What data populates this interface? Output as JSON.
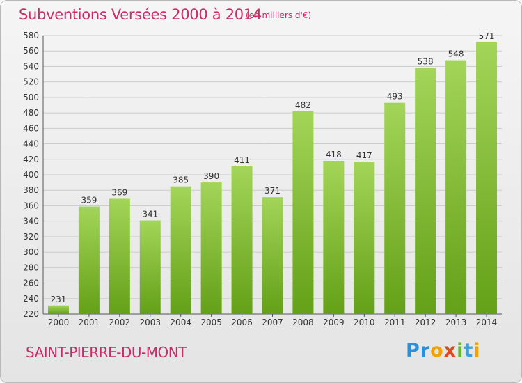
{
  "title": "Subventions Versées 2000 à 2014",
  "subtitle": "(en milliers d'€)",
  "city": "SAINT-PIERRE-DU-MONT",
  "logo": {
    "text": "Proxiti",
    "colors": [
      "#2e8fd6",
      "#f0a300",
      "#e9451c",
      "#67b62f",
      "#3aa3dd"
    ]
  },
  "colors": {
    "title": "#cc2a66",
    "bar_top": "#a3d558",
    "bar_bottom": "#64a018",
    "grid": "#cccccc",
    "axis_text": "#333333"
  },
  "chart_data": {
    "type": "bar",
    "categories": [
      "2000",
      "2001",
      "2002",
      "2003",
      "2004",
      "2005",
      "2006",
      "2007",
      "2008",
      "2009",
      "2010",
      "2011",
      "2012",
      "2013",
      "2014"
    ],
    "values": [
      231,
      359,
      369,
      341,
      385,
      390,
      411,
      371,
      482,
      418,
      417,
      493,
      538,
      548,
      571
    ],
    "labels": [
      "231",
      "359",
      "369",
      "341",
      "385",
      "390",
      "411",
      "371",
      "482",
      "418",
      "417",
      "493",
      "538",
      "548",
      "571"
    ],
    "ylim": [
      220,
      580
    ],
    "yticks": [
      220,
      240,
      260,
      280,
      300,
      320,
      340,
      360,
      380,
      400,
      420,
      440,
      460,
      480,
      500,
      520,
      540,
      560,
      580
    ],
    "grid": true,
    "title": "Subventions Versées 2000 à 2014",
    "xlabel": "",
    "ylabel": ""
  }
}
